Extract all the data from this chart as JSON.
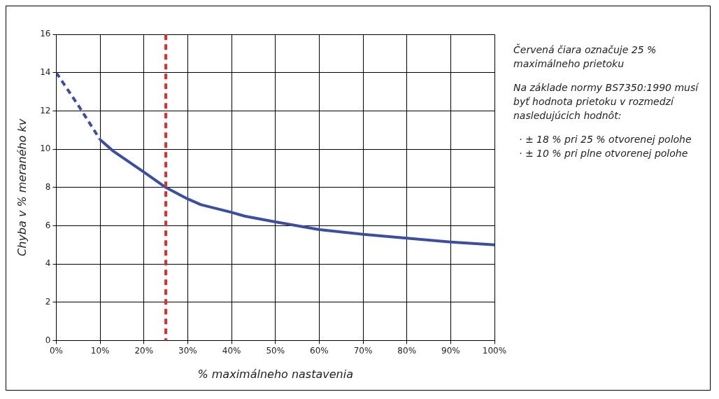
{
  "chart_data": {
    "type": "line",
    "xlabel": "% maximálneho nastavenia",
    "ylabel": "Chyba v % meraného kv",
    "series": [
      {
        "color": "#3b4ea3",
        "line_style": "dashed",
        "x": [
          0,
          5,
          10
        ],
        "values": [
          14,
          12.3,
          10.5
        ]
      },
      {
        "color": "#3b4ea3",
        "line_style": "solid",
        "x": [
          10,
          13,
          20,
          25,
          30,
          33,
          40,
          43,
          50,
          60,
          70,
          80,
          90,
          100
        ],
        "values": [
          10.5,
          9.9,
          8.8,
          8.0,
          7.4,
          7.1,
          6.7,
          6.5,
          6.2,
          5.8,
          5.55,
          5.35,
          5.15,
          5.0
        ]
      }
    ],
    "xlim": [
      0,
      100
    ],
    "xticks": [
      {
        "value": 0,
        "label": "0%"
      },
      {
        "value": 10,
        "label": "10%"
      },
      {
        "value": 20,
        "label": "20%"
      },
      {
        "value": 30,
        "label": "30%"
      },
      {
        "value": 40,
        "label": "40%"
      },
      {
        "value": 50,
        "label": "50%"
      },
      {
        "value": 60,
        "label": "60%"
      },
      {
        "value": 70,
        "label": "70%"
      },
      {
        "value": 80,
        "label": "80%"
      },
      {
        "value": 90,
        "label": "90%"
      },
      {
        "value": 100,
        "label": "100%"
      }
    ],
    "ylim": [
      0,
      16
    ],
    "yticks": [
      0,
      2,
      4,
      6,
      8,
      10,
      12,
      14,
      16
    ],
    "ref_lines": [
      {
        "axis": "x",
        "value": 25,
        "color": "#e32b2b",
        "line_style": "dashed"
      }
    ],
    "grid": true,
    "legend": false,
    "marker": "none",
    "annotations": [
      "Červená čiara označuje 25 % maximálneho prietoku",
      "Na základe normy BS7350:1990 musí byť hodnota prietoku v rozmedzí nasledujúcich hodnôt:",
      "· ± 18 % pri 25 % otvorenej polohe",
      "· ± 10 % pri plne otvorenej polohe"
    ]
  }
}
